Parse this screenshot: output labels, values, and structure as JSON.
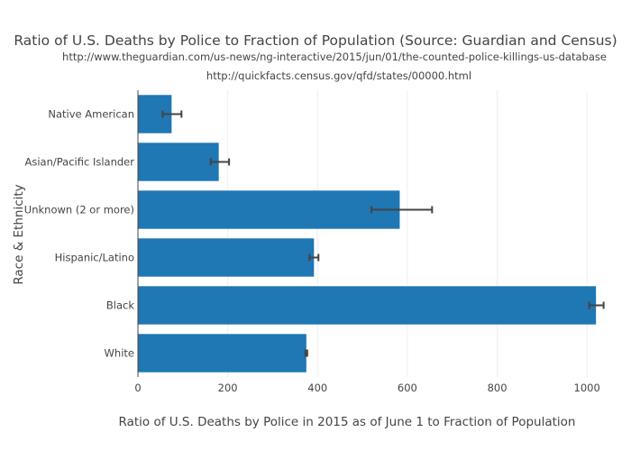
{
  "chart_data": {
    "type": "bar",
    "orientation": "horizontal",
    "title": "Ratio of U.S. Deaths by Police to Fraction of Population (Source: Guardian and Census)",
    "subtitle_lines": [
      "http://www.theguardian.com/us-news/ng-interactive/2015/jun/01/the-counted-police-killings-us-database",
      "http://quickfacts.census.gov/qfd/states/00000.html"
    ],
    "xlabel": "Ratio of U.S. Deaths by Police in 2015 as of June 1 to Fraction of Population",
    "ylabel": "Race & Ethnicity",
    "categories": [
      "White",
      "Black",
      "Hispanic/Latino",
      "Unknown (2 or more)",
      "Asian/Pacific Islander",
      "Native American"
    ],
    "values": [
      375,
      1020,
      392,
      583,
      180,
      75
    ],
    "error_low": [
      373,
      1005,
      382,
      520,
      162,
      55
    ],
    "error_high": [
      377,
      1037,
      402,
      655,
      203,
      97
    ],
    "xlim": [
      0,
      1100
    ],
    "x_ticks": [
      0,
      200,
      400,
      600,
      800,
      1000
    ],
    "x_tick_labels": [
      "0",
      "200",
      "400",
      "600",
      "800",
      "1000"
    ],
    "bar_color": "#1f77b4",
    "error_bar_color": "#444444",
    "grid": true,
    "legend": "none"
  }
}
